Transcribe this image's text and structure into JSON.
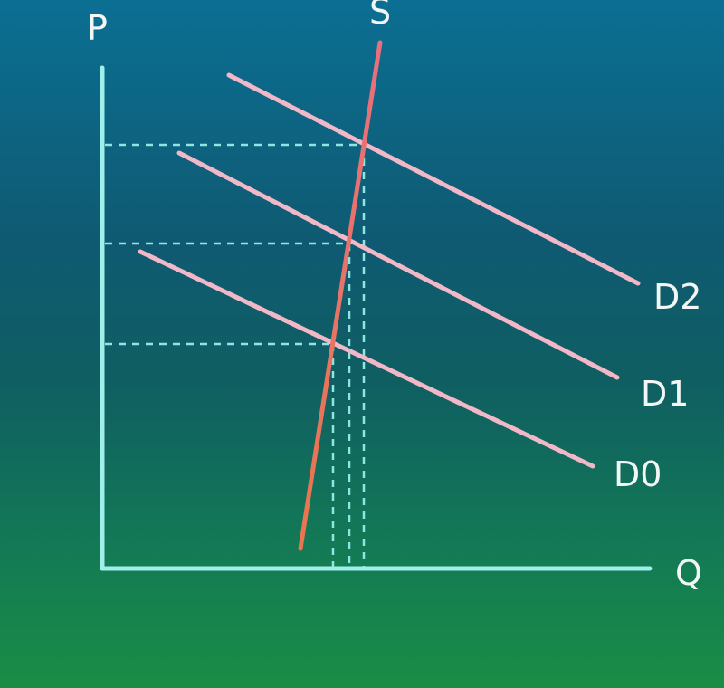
{
  "diagram": {
    "axes": {
      "y_label": "P",
      "x_label": "Q"
    },
    "supply": {
      "label": "S"
    },
    "demand": [
      {
        "label": "D0"
      },
      {
        "label": "D1"
      },
      {
        "label": "D2"
      }
    ],
    "colors": {
      "axis": "#9ff0ea",
      "demand": "#f2b8c8",
      "supply_top": "#e8707e",
      "supply_bottom": "#e8764f",
      "guides": "#8fe6e0"
    }
  }
}
